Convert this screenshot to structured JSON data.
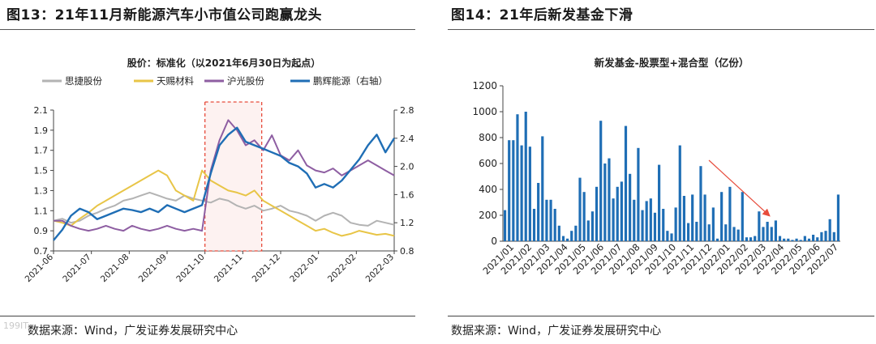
{
  "watermark": "199IT",
  "fig13": {
    "heading": "图13：21年11月新能源汽车小市值公司跑赢龙头",
    "source": "数据来源：Wind，广发证券发展研究中心",
    "chart_data": {
      "type": "line",
      "title": "股价：标准化（以2021年6月30日为起点）",
      "x_ticks": [
        "2021-06",
        "2021-07",
        "2021-08",
        "2021-09",
        "2021-10",
        "2021-11",
        "2021-12",
        "2022-01",
        "2022-02",
        "2022-03"
      ],
      "y_left": {
        "min": 0.7,
        "max": 2.1,
        "ticks": [
          "0.7",
          "0.9",
          "1.1",
          "1.3",
          "1.5",
          "1.7",
          "1.9",
          "2.1"
        ]
      },
      "y_right": {
        "min": 0.8,
        "max": 2.8,
        "ticks": [
          "0.8",
          "1.2",
          "1.6",
          "2.0",
          "2.4",
          "2.8"
        ]
      },
      "highlight": {
        "from": "2021-10-01",
        "to": "2021-11-15",
        "color": "#e74c3c"
      },
      "series": [
        {
          "name": "思捷股份",
          "color": "#b3b3b3",
          "axis": "left",
          "values": [
            1.0,
            1.02,
            0.98,
            1.0,
            1.05,
            1.08,
            1.12,
            1.15,
            1.2,
            1.22,
            1.25,
            1.28,
            1.25,
            1.22,
            1.2,
            1.25,
            1.22,
            1.2,
            1.18,
            1.22,
            1.2,
            1.15,
            1.12,
            1.15,
            1.1,
            1.12,
            1.15,
            1.1,
            1.08,
            1.05,
            1.0,
            1.05,
            1.08,
            1.05,
            0.98,
            0.96,
            0.95,
            1.0,
            0.98,
            0.96
          ]
        },
        {
          "name": "天赐材料",
          "color": "#e8c547",
          "axis": "left",
          "values": [
            1.0,
            0.98,
            0.95,
            1.02,
            1.08,
            1.15,
            1.2,
            1.25,
            1.3,
            1.35,
            1.4,
            1.45,
            1.5,
            1.45,
            1.3,
            1.25,
            1.2,
            1.5,
            1.4,
            1.35,
            1.3,
            1.28,
            1.25,
            1.3,
            1.2,
            1.15,
            1.1,
            1.05,
            1.0,
            0.95,
            0.9,
            0.92,
            0.88,
            0.85,
            0.87,
            0.9,
            0.88,
            0.86,
            0.87,
            0.85
          ]
        },
        {
          "name": "沪光股份",
          "color": "#8e5ea2",
          "axis": "left",
          "values": [
            1.0,
            1.0,
            0.95,
            0.92,
            0.9,
            0.92,
            0.95,
            0.92,
            0.9,
            0.95,
            0.92,
            0.9,
            0.92,
            0.95,
            0.92,
            0.9,
            0.92,
            0.9,
            1.5,
            1.8,
            2.0,
            1.9,
            1.75,
            1.8,
            1.7,
            1.85,
            1.65,
            1.6,
            1.7,
            1.55,
            1.5,
            1.48,
            1.52,
            1.45,
            1.5,
            1.55,
            1.6,
            1.55,
            1.5,
            1.45
          ]
        },
        {
          "name": "鹏辉能源（右轴）",
          "color": "#1f6eb5",
          "axis": "right",
          "values": [
            0.95,
            1.1,
            1.3,
            1.4,
            1.35,
            1.25,
            1.3,
            1.35,
            1.4,
            1.38,
            1.35,
            1.4,
            1.35,
            1.45,
            1.4,
            1.35,
            1.4,
            1.45,
            1.9,
            2.3,
            2.45,
            2.55,
            2.35,
            2.3,
            2.25,
            2.2,
            2.15,
            2.05,
            2.0,
            1.9,
            1.7,
            1.75,
            1.7,
            1.8,
            1.95,
            2.1,
            2.3,
            2.45,
            2.2,
            2.4
          ]
        }
      ]
    }
  },
  "fig14": {
    "heading": "图14：21年后新发基金下滑",
    "source": "数据来源：Wind，广发证券发展研究中心",
    "chart_data": {
      "type": "bar",
      "title": "新发基金-股票型+混合型（亿份）",
      "color": "#1f6eb5",
      "arrow_color": "#e74c3c",
      "ylim": [
        0,
        1200
      ],
      "y_ticks": [
        "0",
        "200",
        "400",
        "600",
        "800",
        "1000",
        "1200"
      ],
      "x_labels": [
        "2021/01",
        "2021/02",
        "2021/03",
        "2021/04",
        "2021/05",
        "2021/06",
        "2021/07",
        "2021/08",
        "2021/09",
        "2021/10",
        "2021/11",
        "2021/12",
        "2022/01",
        "2022/02",
        "2022/03",
        "2022/04",
        "2022/05",
        "2022/06",
        "2022/07"
      ],
      "values": [
        240,
        780,
        780,
        980,
        740,
        1000,
        730,
        250,
        450,
        810,
        320,
        320,
        250,
        120,
        40,
        20,
        80,
        120,
        490,
        380,
        160,
        230,
        420,
        930,
        600,
        640,
        330,
        420,
        460,
        890,
        520,
        320,
        720,
        240,
        310,
        330,
        220,
        590,
        250,
        80,
        60,
        260,
        740,
        350,
        140,
        360,
        150,
        580,
        360,
        130,
        260,
        20,
        380,
        130,
        420,
        110,
        90,
        380,
        30,
        30,
        40,
        230,
        110,
        150,
        110,
        160,
        40,
        20,
        20,
        10,
        20,
        10,
        40,
        20,
        50,
        30,
        70,
        80,
        170,
        70,
        360
      ]
    }
  }
}
